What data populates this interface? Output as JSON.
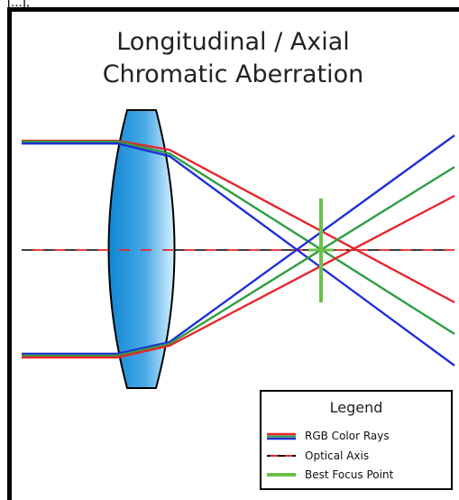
{
  "top_fragment": "[...],",
  "title_line1": "Longitudinal / Axial",
  "title_line2": "Chromatic Aberration",
  "legend": {
    "title": "Legend",
    "items": [
      {
        "label": "RGB Color Rays",
        "icon": "rgb-rays-swatch"
      },
      {
        "label": "Optical Axis",
        "icon": "optical-axis-swatch"
      },
      {
        "label": "Best Focus Point",
        "icon": "best-focus-swatch"
      }
    ]
  },
  "colors": {
    "red": "#e8262a",
    "green": "#2f9e44",
    "blue": "#1f2fd8",
    "lens_light": "#c9e9fb",
    "lens_dark": "#1f8ed6",
    "focus_marker": "#6cc04a"
  }
}
